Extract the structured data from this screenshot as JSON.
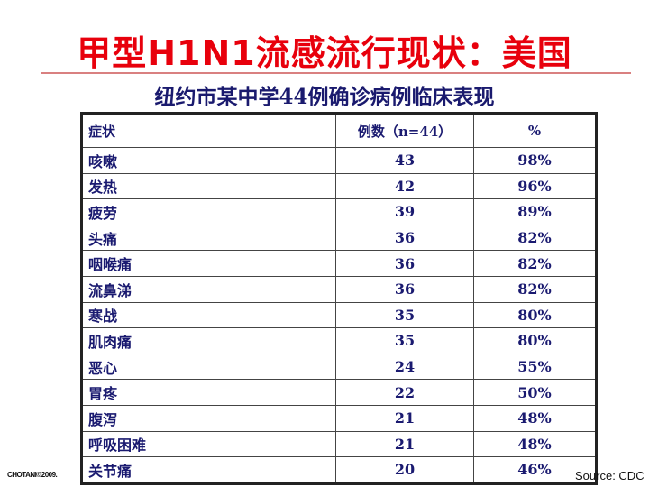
{
  "title": "甲型H1N1流感流行现状：美国",
  "subtitle": "纽约市某中学44例确诊病例临床表现",
  "table": {
    "headers": [
      "症状",
      "例数（n=44）",
      "%"
    ],
    "rows": [
      [
        "咳嗽",
        "43",
        "98%"
      ],
      [
        "发热",
        "42",
        "96%"
      ],
      [
        "疲劳",
        "39",
        "89%"
      ],
      [
        "头痛",
        "36",
        "82%"
      ],
      [
        "咽喉痛",
        "36",
        "82%"
      ],
      [
        "流鼻涕",
        "36",
        "82%"
      ],
      [
        "寒战",
        "35",
        "80%"
      ],
      [
        "肌肉痛",
        "35",
        "80%"
      ],
      [
        "恶心",
        "24",
        "55%"
      ],
      [
        "胃疼",
        "22",
        "50%"
      ],
      [
        "腹泻",
        "21",
        "48%"
      ],
      [
        "呼吸困难",
        "21",
        "48%"
      ],
      [
        "关节痛",
        "20",
        "46%"
      ]
    ]
  },
  "footer": {
    "copyright": "CHOTANI©2009.",
    "source": "Source: CDC"
  },
  "colors": {
    "title": "#e8000c",
    "text": "#1a1a70"
  }
}
